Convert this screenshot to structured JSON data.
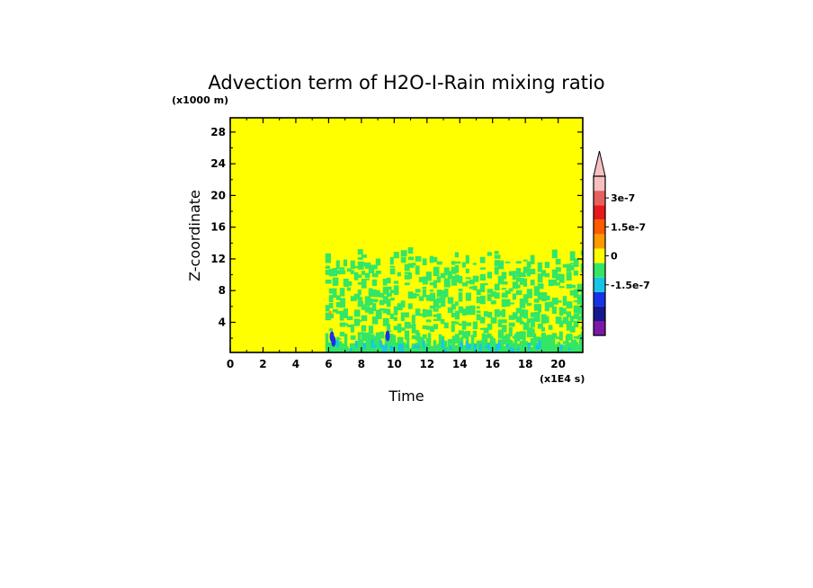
{
  "chart_data": {
    "type": "heatmap",
    "title": "Advection term of H2O-I-Rain mixing ratio",
    "xlabel": "Time",
    "ylabel": "Z-coordinate",
    "x_scale_note": "(x1E4 s)",
    "y_scale_note": "(x1000 m)",
    "xlim": [
      0,
      21.5
    ],
    "ylim": [
      0.2,
      29.8
    ],
    "x_ticks": [
      "0",
      "2",
      "4",
      "6",
      "8",
      "10",
      "12",
      "14",
      "16",
      "18",
      "20"
    ],
    "y_ticks": [
      "4",
      "8",
      "12",
      "16",
      "20",
      "24",
      "28"
    ],
    "grid": false,
    "background_level": 0,
    "active_region": {
      "x_start": 5.8,
      "x_end": 21.5,
      "top_height": 12
    },
    "colorbar": {
      "colors": [
        "#7b19a8",
        "#17178f",
        "#1733e6",
        "#17c6e6",
        "#33e666",
        "#ffff00",
        "#ff9900",
        "#ff5a00",
        "#e61a1a",
        "#e66060",
        "#f7c0c0"
      ],
      "labels": [
        "-1.5e-7",
        "0",
        "1.5e-7",
        "3e-7"
      ],
      "label_levels": [
        -1.5e-07,
        0,
        1.5e-07,
        3e-07
      ],
      "extend_max": true
    }
  }
}
